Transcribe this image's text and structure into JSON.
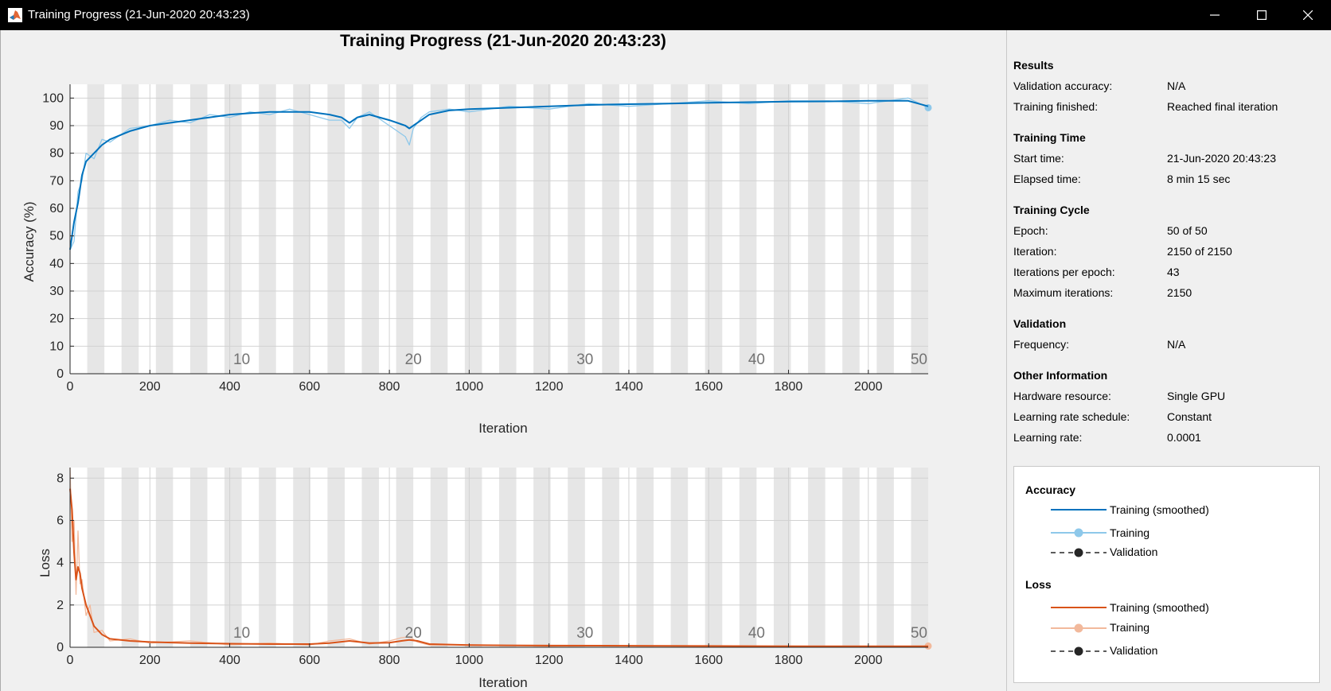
{
  "window": {
    "title": "Training Progress (21-Jun-2020 20:43:23)"
  },
  "plot": {
    "main_title": "Training Progress (21-Jun-2020 20:43:23)"
  },
  "chart_data": [
    {
      "type": "line",
      "ylabel": "Accuracy (%)",
      "xlabel": "Iteration",
      "xlim": [
        0,
        2150
      ],
      "ylim": [
        0,
        105
      ],
      "xticks": [
        0,
        200,
        400,
        600,
        800,
        1000,
        1200,
        1400,
        1600,
        1800,
        2000
      ],
      "yticks": [
        0,
        10,
        20,
        30,
        40,
        50,
        60,
        70,
        80,
        90,
        100
      ],
      "epoch_labels": [
        "10",
        "20",
        "30",
        "40",
        "50"
      ],
      "epoch_label_iterations": [
        430,
        860,
        1290,
        1720,
        2150
      ],
      "iterations_per_epoch": 43,
      "grid": true,
      "series": [
        {
          "name": "Training (smoothed)",
          "color": "#0072bd",
          "x": [
            0,
            10,
            20,
            30,
            40,
            60,
            80,
            100,
            150,
            200,
            250,
            300,
            350,
            400,
            450,
            500,
            550,
            600,
            650,
            680,
            700,
            720,
            750,
            800,
            820,
            840,
            850,
            860,
            880,
            900,
            950,
            1000,
            1100,
            1200,
            1300,
            1400,
            1500,
            1600,
            1700,
            1800,
            1900,
            2000,
            2100,
            2150
          ],
          "values": [
            45,
            55,
            62,
            72,
            77,
            80,
            83,
            85,
            88,
            90,
            91,
            92,
            93,
            94,
            94.5,
            95,
            95,
            95,
            94,
            93,
            91,
            93,
            94,
            92,
            91,
            90,
            89,
            90,
            92,
            94,
            95.5,
            96,
            96.5,
            97,
            97.5,
            97.8,
            98,
            98.3,
            98.5,
            98.7,
            98.8,
            99,
            99,
            97
          ]
        },
        {
          "name": "Training",
          "color": "#8ec8ea",
          "x": [
            0,
            10,
            20,
            30,
            40,
            60,
            80,
            100,
            150,
            200,
            250,
            300,
            350,
            400,
            450,
            500,
            550,
            600,
            650,
            680,
            700,
            720,
            750,
            800,
            820,
            840,
            850,
            860,
            880,
            900,
            950,
            1000,
            1100,
            1200,
            1300,
            1400,
            1500,
            1600,
            1700,
            1800,
            1900,
            2000,
            2100,
            2150
          ],
          "values": [
            45,
            48,
            66,
            70,
            80,
            78,
            85,
            84,
            89,
            90,
            92,
            91,
            94,
            93,
            95,
            94,
            96,
            94,
            92,
            92,
            89,
            93,
            95,
            90,
            88,
            86,
            83,
            89,
            93,
            95,
            96,
            95,
            97,
            96,
            98,
            97,
            98,
            99,
            98,
            99,
            99,
            98,
            100,
            96.5
          ]
        }
      ]
    },
    {
      "type": "line",
      "ylabel": "Loss",
      "xlabel": "Iteration",
      "xlim": [
        0,
        2150
      ],
      "ylim": [
        0,
        8.5
      ],
      "xticks": [
        0,
        200,
        400,
        600,
        800,
        1000,
        1200,
        1400,
        1600,
        1800,
        2000
      ],
      "yticks": [
        0,
        2,
        4,
        6,
        8
      ],
      "epoch_labels": [
        "10",
        "20",
        "30",
        "40",
        "50"
      ],
      "epoch_label_iterations": [
        430,
        860,
        1290,
        1720,
        2150
      ],
      "grid": true,
      "series": [
        {
          "name": "Training (smoothed)",
          "color": "#d95319",
          "x": [
            0,
            5,
            10,
            15,
            20,
            25,
            30,
            40,
            50,
            60,
            80,
            100,
            150,
            200,
            300,
            400,
            500,
            600,
            650,
            700,
            750,
            800,
            830,
            850,
            870,
            900,
            1000,
            1200,
            1400,
            1600,
            1800,
            2000,
            2150
          ],
          "values": [
            7.5,
            6.5,
            4.5,
            3.2,
            3.8,
            3.5,
            2.8,
            2.0,
            1.5,
            1.0,
            0.6,
            0.4,
            0.3,
            0.25,
            0.2,
            0.17,
            0.15,
            0.15,
            0.2,
            0.3,
            0.2,
            0.22,
            0.3,
            0.35,
            0.3,
            0.15,
            0.1,
            0.08,
            0.07,
            0.06,
            0.05,
            0.05,
            0.05
          ]
        },
        {
          "name": "Training",
          "color": "#f2b99c",
          "x": [
            0,
            5,
            10,
            15,
            20,
            25,
            30,
            40,
            50,
            60,
            80,
            100,
            150,
            200,
            300,
            400,
            500,
            600,
            650,
            700,
            750,
            800,
            830,
            850,
            870,
            900,
            1000,
            1200,
            1400,
            1600,
            1800,
            2000,
            2150
          ],
          "values": [
            8.5,
            5.0,
            6.0,
            2.5,
            5.5,
            3.0,
            3.2,
            1.5,
            2.0,
            0.7,
            0.8,
            0.3,
            0.4,
            0.2,
            0.3,
            0.12,
            0.2,
            0.1,
            0.3,
            0.4,
            0.15,
            0.3,
            0.45,
            0.5,
            0.25,
            0.1,
            0.12,
            0.05,
            0.08,
            0.04,
            0.06,
            0.03,
            0.06
          ]
        }
      ]
    }
  ],
  "sidebar": {
    "results": {
      "heading": "Results",
      "rows": [
        {
          "label": "Validation accuracy:",
          "value": "N/A"
        },
        {
          "label": "Training finished:",
          "value": "Reached final iteration"
        }
      ]
    },
    "time": {
      "heading": "Training Time",
      "rows": [
        {
          "label": "Start time:",
          "value": "21-Jun-2020 20:43:23"
        },
        {
          "label": "Elapsed time:",
          "value": "8 min 15 sec"
        }
      ]
    },
    "cycle": {
      "heading": "Training Cycle",
      "rows": [
        {
          "label": "Epoch:",
          "value": "50 of 50"
        },
        {
          "label": "Iteration:",
          "value": "2150 of 2150"
        },
        {
          "label": "Iterations per epoch:",
          "value": "43"
        },
        {
          "label": "Maximum iterations:",
          "value": "2150"
        }
      ]
    },
    "validation": {
      "heading": "Validation",
      "rows": [
        {
          "label": "Frequency:",
          "value": "N/A"
        }
      ]
    },
    "other": {
      "heading": "Other Information",
      "rows": [
        {
          "label": "Hardware resource:",
          "value": "Single GPU"
        },
        {
          "label": "Learning rate schedule:",
          "value": "Constant"
        },
        {
          "label": "Learning rate:",
          "value": "0.0001"
        }
      ]
    }
  },
  "legend": {
    "accuracy": {
      "heading": "Accuracy",
      "smoothed": "Training (smoothed)",
      "training": "Training",
      "validation": "Validation"
    },
    "loss": {
      "heading": "Loss",
      "smoothed": "Training (smoothed)",
      "training": "Training",
      "validation": "Validation"
    }
  }
}
